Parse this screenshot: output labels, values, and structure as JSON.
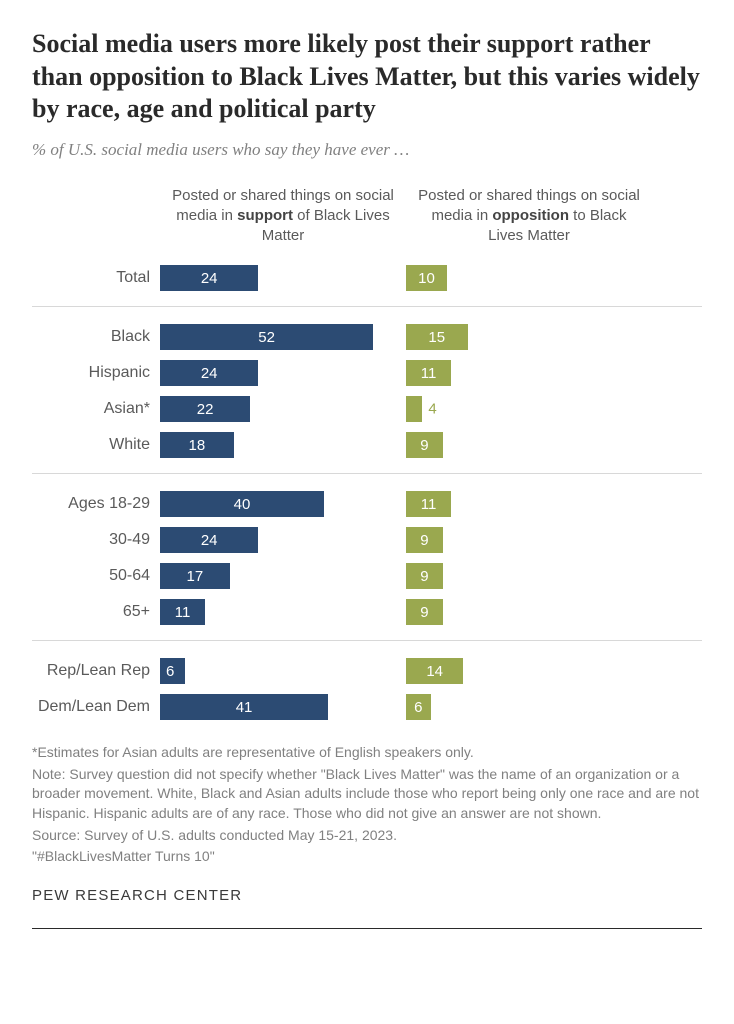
{
  "title": "Social media users more likely post their support rather than opposition to Black Lives Matter, but this varies widely by race, age and political party",
  "subtitle": "% of U.S. social media users who say they have ever …",
  "columns": {
    "support_pre": "Posted or shared things on social media in ",
    "support_strong": "support",
    "support_post": " of Black Lives Matter",
    "oppose_pre": "Posted or shared things on social media in ",
    "oppose_strong": "opposition",
    "oppose_post": " to Black Lives Matter"
  },
  "chart": {
    "max_scale": 60,
    "support_color": "#2c4b73",
    "oppose_color": "#9aa84f",
    "bg": "#ffffff",
    "divider_color": "#d8d8d8",
    "groups": [
      {
        "rows": [
          {
            "label": "Total",
            "support": 24,
            "oppose": 10
          }
        ]
      },
      {
        "rows": [
          {
            "label": "Black",
            "support": 52,
            "oppose": 15
          },
          {
            "label": "Hispanic",
            "support": 24,
            "oppose": 11
          },
          {
            "label": "Asian*",
            "support": 22,
            "oppose": 4,
            "oppose_outside": true
          },
          {
            "label": "White",
            "support": 18,
            "oppose": 9
          }
        ]
      },
      {
        "rows": [
          {
            "label": "Ages 18-29",
            "support": 40,
            "oppose": 11
          },
          {
            "label": "30-49",
            "support": 24,
            "oppose": 9
          },
          {
            "label": "50-64",
            "support": 17,
            "oppose": 9
          },
          {
            "label": "65+",
            "support": 11,
            "oppose": 9
          }
        ]
      },
      {
        "rows": [
          {
            "label": "Rep/Lean Rep",
            "support": 6,
            "oppose": 14
          },
          {
            "label": "Dem/Lean Dem",
            "support": 41,
            "oppose": 6
          }
        ]
      }
    ]
  },
  "notes": {
    "asterisk": "*Estimates for Asian adults are representative of English speakers only.",
    "note": "Note: Survey question did not specify whether \"Black Lives Matter\" was the name of an organization or a broader movement. White, Black and Asian adults include those who report being only one race and are not Hispanic. Hispanic adults are of any race. Those who did not give an answer are not shown.",
    "source": "Source: Survey of U.S. adults conducted May 15-21, 2023.",
    "ref": "\"#BlackLivesMatter Turns 10\""
  },
  "brand": "PEW RESEARCH CENTER"
}
